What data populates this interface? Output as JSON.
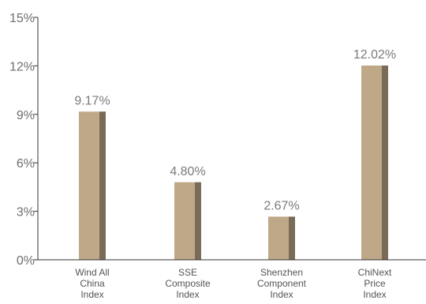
{
  "chart_data": {
    "type": "bar",
    "title": "",
    "xlabel": "",
    "ylabel": "",
    "ylim": [
      0,
      15
    ],
    "y_ticks": [
      0,
      3,
      6,
      9,
      12,
      15
    ],
    "y_tick_labels": [
      "0%",
      "3%",
      "6%",
      "9%",
      "12%",
      "15%"
    ],
    "categories": [
      [
        "Wind All",
        "China",
        "Index"
      ],
      [
        "SSE",
        "Composite",
        "Index"
      ],
      [
        "Shenzhen",
        "Component",
        "Index"
      ],
      [
        "ChiNext",
        "Price",
        "Index"
      ]
    ],
    "values": [
      9.17,
      4.8,
      2.67,
      12.02
    ],
    "data_labels": [
      "9.17%",
      "4.80%",
      "2.67%",
      "12.02%"
    ],
    "grid": false,
    "legend": "none",
    "colors": {
      "bar_face": "#bfa888",
      "bar_side": "#7a6a58",
      "axis": "#333333",
      "text": "#6e6e6e"
    }
  }
}
